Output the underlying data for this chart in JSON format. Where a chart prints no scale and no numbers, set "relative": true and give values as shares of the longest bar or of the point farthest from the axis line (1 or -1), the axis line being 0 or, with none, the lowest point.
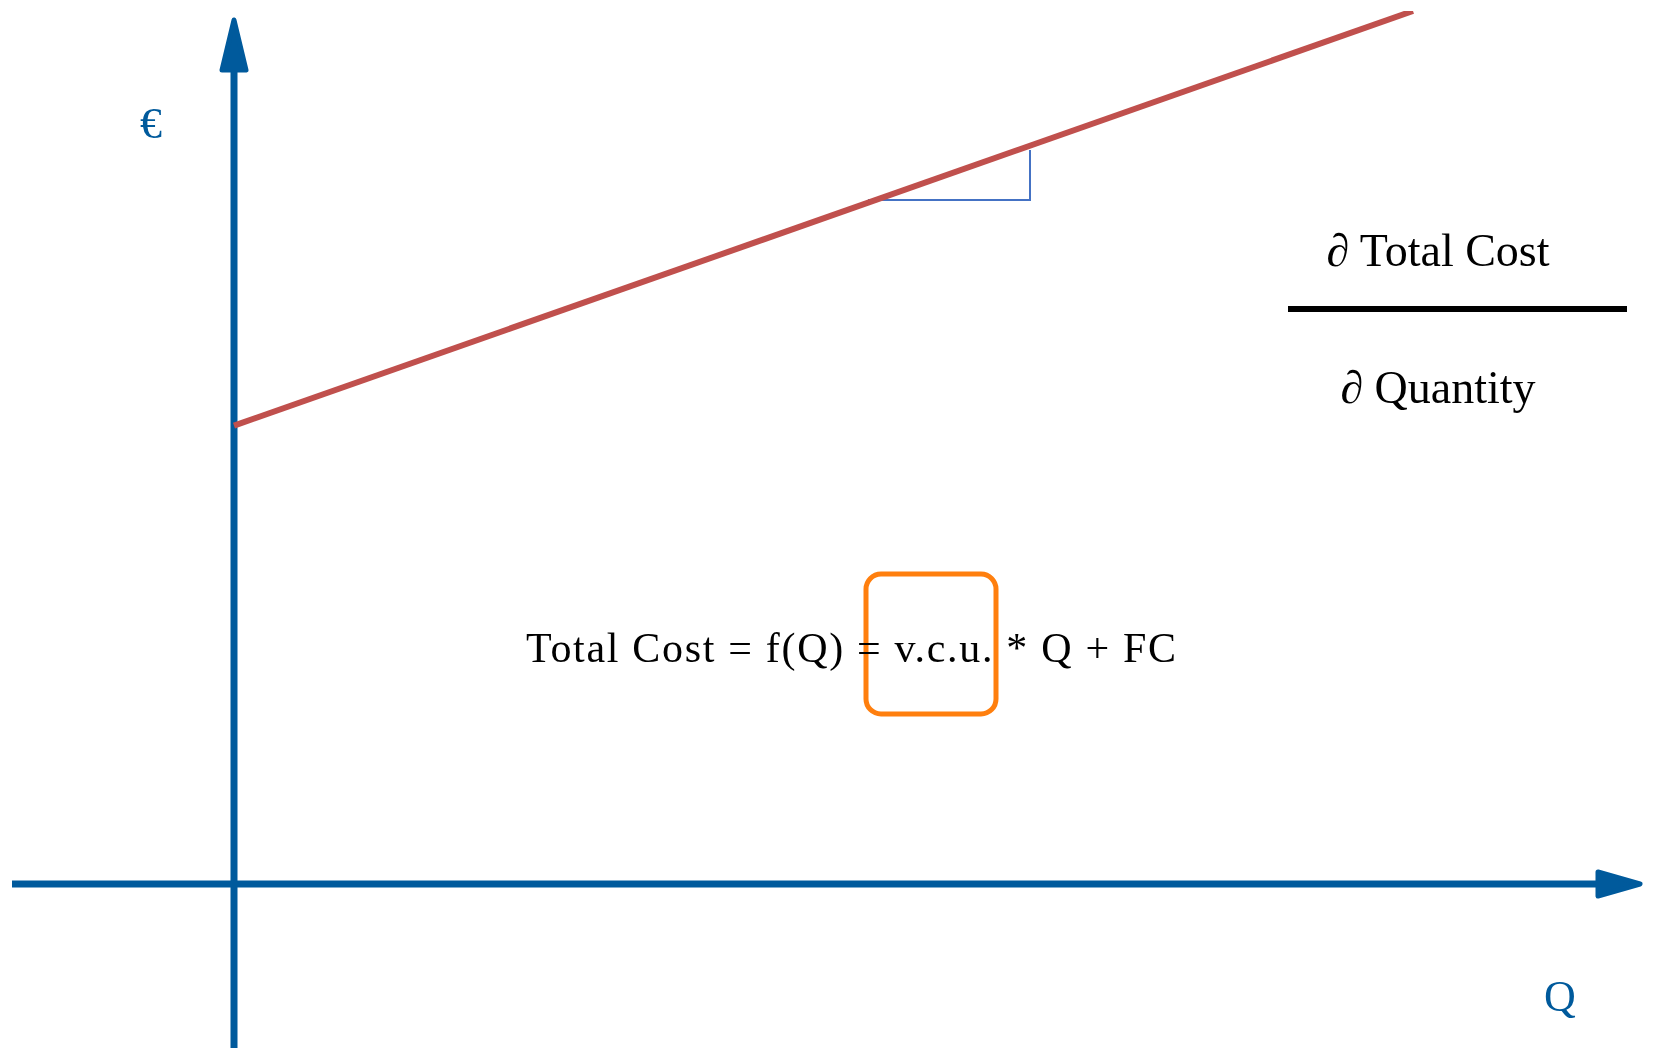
{
  "chart_data": {
    "type": "line",
    "relative": true,
    "xlabel": "Q",
    "ylabel": "€",
    "categories": [
      null,
      null
    ],
    "series": [
      {
        "color": "#c0504d",
        "values": [
          0.525,
          1
        ]
      }
    ],
    "annotations": [
      "∂ Total Cost",
      "∂ Quantity",
      "Total Cost = f(Q) = v.c.u. * Q + FC"
    ]
  }
}
